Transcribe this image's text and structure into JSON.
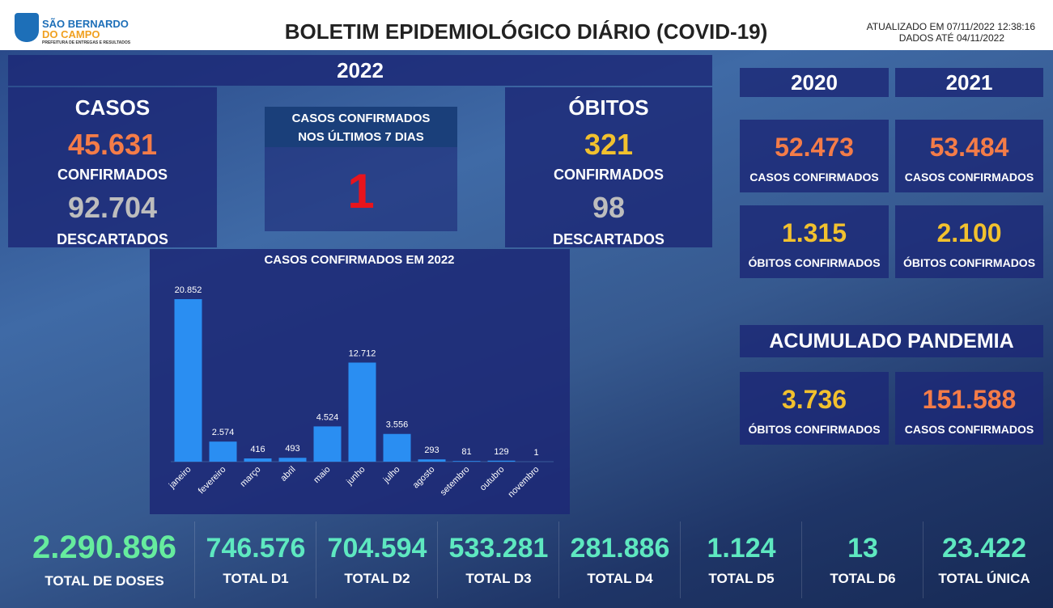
{
  "header": {
    "logo_line1": "SÃO BERNARDO",
    "logo_line2": "DO CAMPO",
    "logo_sub": "PREFEITURA DE ENTREGAS E RESULTADOS",
    "title": "BOLETIM EPIDEMIOLÓGICO DIÁRIO (COVID-19)",
    "updated": "ATUALIZADO EM 07/11/2022 12:38:16",
    "data_until": "DADOS ATÉ 04/11/2022"
  },
  "year2022": {
    "year": "2022",
    "casos": {
      "title": "CASOS",
      "confirmed": "45.631",
      "confirmed_label": "CONFIRMADOS",
      "discarded": "92.704",
      "discarded_label": "DESCARTADOS"
    },
    "last7": {
      "title_line1": "CASOS CONFIRMADOS",
      "title_line2": "NOS ÚLTIMOS 7 DIAS",
      "value": "1"
    },
    "obitos": {
      "title": "ÓBITOS",
      "confirmed": "321",
      "confirmed_label": "CONFIRMADOS",
      "discarded": "98",
      "discarded_label": "DESCARTADOS"
    }
  },
  "years": [
    {
      "year": "2020",
      "cases": "52.473",
      "cases_label": "CASOS CONFIRMADOS",
      "deaths": "1.315",
      "deaths_label": "ÓBITOS CONFIRMADOS"
    },
    {
      "year": "2021",
      "cases": "53.484",
      "cases_label": "CASOS CONFIRMADOS",
      "deaths": "2.100",
      "deaths_label": "ÓBITOS CONFIRMADOS"
    }
  ],
  "accumulated": {
    "title": "ACUMULADO PANDEMIA",
    "deaths": "3.736",
    "deaths_label": "ÓBITOS CONFIRMADOS",
    "cases": "151.588",
    "cases_label": "CASOS CONFIRMADOS"
  },
  "vaccines": [
    {
      "value": "2.290.896",
      "label": "TOTAL DE DOSES"
    },
    {
      "value": "746.576",
      "label": "TOTAL D1"
    },
    {
      "value": "704.594",
      "label": "TOTAL D2"
    },
    {
      "value": "533.281",
      "label": "TOTAL D3"
    },
    {
      "value": "281.886",
      "label": "TOTAL D4"
    },
    {
      "value": "1.124",
      "label": "TOTAL D5"
    },
    {
      "value": "13",
      "label": "TOTAL D6"
    },
    {
      "value": "23.422",
      "label": "TOTAL ÚNICA"
    }
  ],
  "chart_data": {
    "type": "bar",
    "title": "CASOS CONFIRMADOS EM 2022",
    "categories": [
      "janeiro",
      "fevereiro",
      "março",
      "abril",
      "maio",
      "junho",
      "julho",
      "agosto",
      "setembro",
      "outubro",
      "novembro"
    ],
    "values": [
      20852,
      2574,
      416,
      493,
      4524,
      12712,
      3556,
      293,
      81,
      129,
      1
    ],
    "value_labels": [
      "20.852",
      "2.574",
      "416",
      "493",
      "4.524",
      "12.712",
      "3.556",
      "293",
      "81",
      "129",
      "1"
    ],
    "color": "#2a8ef2"
  }
}
